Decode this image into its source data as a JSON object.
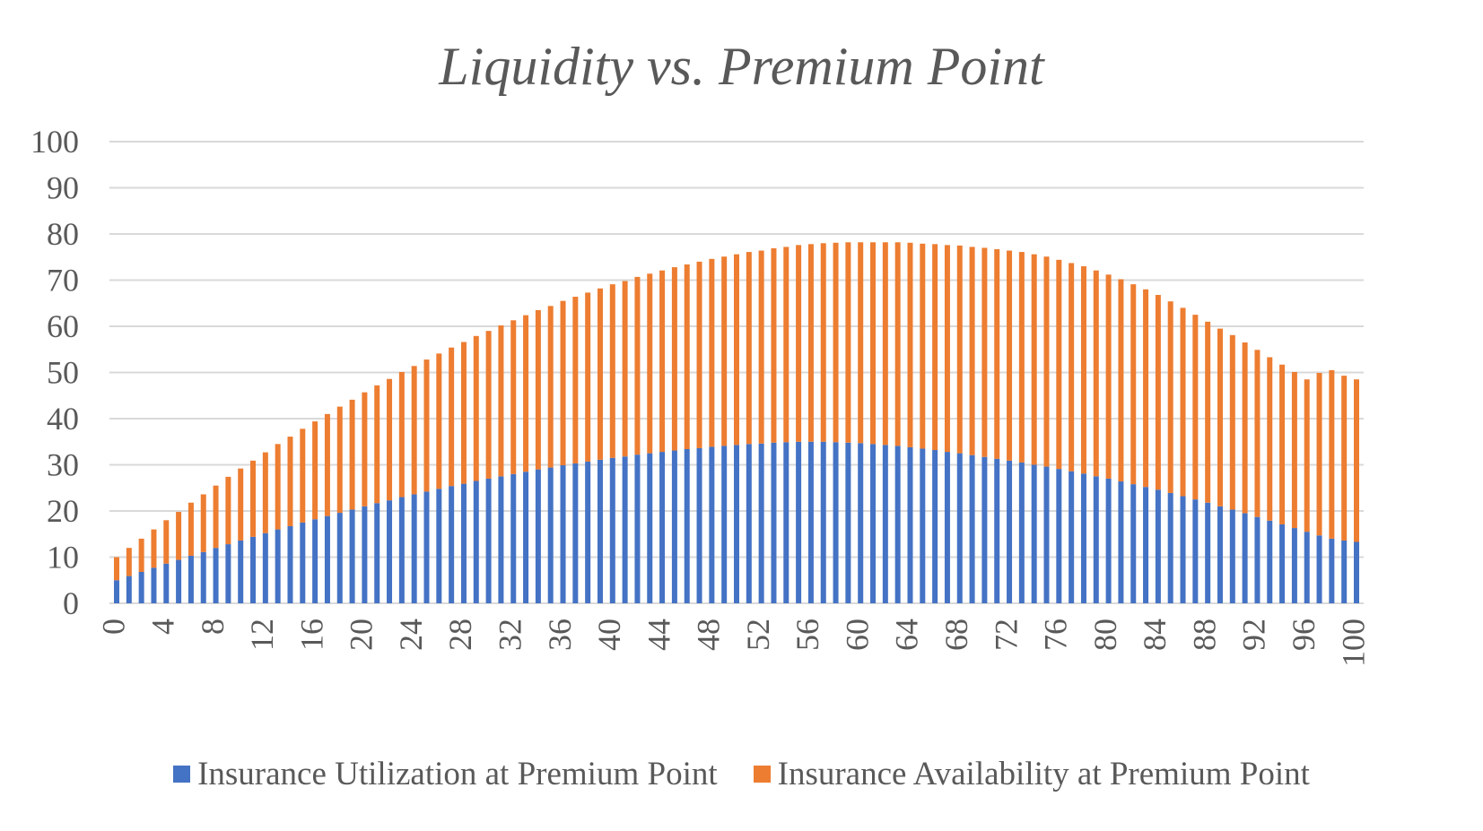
{
  "chart_data": {
    "type": "bar",
    "stacked": true,
    "title": "Liquidity vs. Premium Point",
    "xlabel": "",
    "ylabel": "",
    "ylim": [
      0,
      100
    ],
    "yticks": [
      0,
      10,
      20,
      30,
      40,
      50,
      60,
      70,
      80,
      90,
      100
    ],
    "xtick_labels": [
      "0",
      "4",
      "8",
      "12",
      "16",
      "20",
      "24",
      "28",
      "32",
      "36",
      "40",
      "44",
      "48",
      "52",
      "56",
      "60",
      "64",
      "68",
      "72",
      "76",
      "80",
      "84",
      "88",
      "92",
      "96",
      "100"
    ],
    "grid": "horizontal",
    "legend": "bottom",
    "x": [
      0,
      1,
      2,
      3,
      4,
      5,
      6,
      7,
      8,
      9,
      10,
      11,
      12,
      13,
      14,
      15,
      16,
      17,
      18,
      19,
      20,
      21,
      22,
      23,
      24,
      25,
      26,
      27,
      28,
      29,
      30,
      31,
      32,
      33,
      34,
      35,
      36,
      37,
      38,
      39,
      40,
      41,
      42,
      43,
      44,
      45,
      46,
      47,
      48,
      49,
      50,
      51,
      52,
      53,
      54,
      55,
      56,
      57,
      58,
      59,
      60,
      61,
      62,
      63,
      64,
      65,
      66,
      67,
      68,
      69,
      70,
      71,
      72,
      73,
      74,
      75,
      76,
      77,
      78,
      79,
      80,
      81,
      82,
      83,
      84,
      85,
      86,
      87,
      88,
      89,
      90,
      91,
      92,
      93,
      94,
      95,
      96,
      97,
      98,
      99,
      100
    ],
    "series": [
      {
        "name": "Insurance Utilization at Premium Point",
        "color": "#4472C4",
        "values": [
          5.0,
          5.9,
          6.8,
          7.7,
          8.6,
          9.4,
          10.3,
          11.1,
          12.0,
          12.8,
          13.6,
          14.4,
          15.2,
          16.0,
          16.7,
          17.5,
          18.2,
          18.9,
          19.6,
          20.3,
          21.0,
          21.7,
          22.3,
          23.0,
          23.6,
          24.2,
          24.8,
          25.4,
          25.9,
          26.5,
          27.0,
          27.5,
          28.0,
          28.5,
          29.0,
          29.4,
          29.9,
          30.3,
          30.7,
          31.1,
          31.5,
          31.8,
          32.2,
          32.5,
          32.8,
          33.1,
          33.4,
          33.6,
          33.9,
          34.1,
          34.3,
          34.5,
          34.6,
          34.8,
          34.9,
          35.0,
          35.0,
          35.0,
          34.9,
          34.8,
          34.7,
          34.5,
          34.3,
          34.1,
          33.8,
          33.5,
          33.2,
          32.8,
          32.5,
          32.1,
          31.7,
          31.3,
          30.9,
          30.5,
          30.0,
          29.6,
          29.1,
          28.6,
          28.1,
          27.5,
          27.0,
          26.4,
          25.8,
          25.2,
          24.6,
          23.9,
          23.2,
          22.5,
          21.8,
          21.0,
          20.3,
          19.5,
          18.7,
          17.9,
          17.1,
          16.3,
          15.5,
          14.7,
          14.0,
          13.6,
          13.3
        ]
      },
      {
        "name": "Insurance Availability at Premium Point",
        "color": "#ED7D31",
        "values": [
          5.0,
          6.1,
          7.2,
          8.3,
          9.4,
          10.4,
          11.5,
          12.5,
          13.5,
          14.6,
          15.6,
          16.5,
          17.5,
          18.5,
          19.4,
          20.3,
          21.2,
          22.1,
          23.0,
          23.8,
          24.7,
          25.5,
          26.3,
          27.1,
          27.8,
          28.6,
          29.3,
          30.0,
          30.7,
          31.4,
          32.0,
          32.7,
          33.3,
          33.9,
          34.5,
          35.0,
          35.6,
          36.1,
          36.6,
          37.1,
          37.6,
          38.0,
          38.5,
          38.9,
          39.3,
          39.7,
          40.0,
          40.4,
          40.7,
          41.0,
          41.3,
          41.6,
          41.8,
          42.1,
          42.3,
          42.6,
          42.8,
          43.0,
          43.2,
          43.4,
          43.5,
          43.7,
          43.9,
          44.1,
          44.3,
          44.4,
          44.6,
          44.8,
          45.0,
          45.1,
          45.3,
          45.4,
          45.5,
          45.6,
          45.6,
          45.5,
          45.3,
          45.1,
          44.9,
          44.6,
          44.2,
          43.8,
          43.3,
          42.8,
          42.2,
          41.5,
          40.8,
          40.0,
          39.2,
          38.5,
          37.8,
          37.0,
          36.2,
          35.4,
          34.6,
          33.8,
          33.0,
          35.2,
          36.5,
          35.7,
          35.2
        ]
      }
    ]
  }
}
